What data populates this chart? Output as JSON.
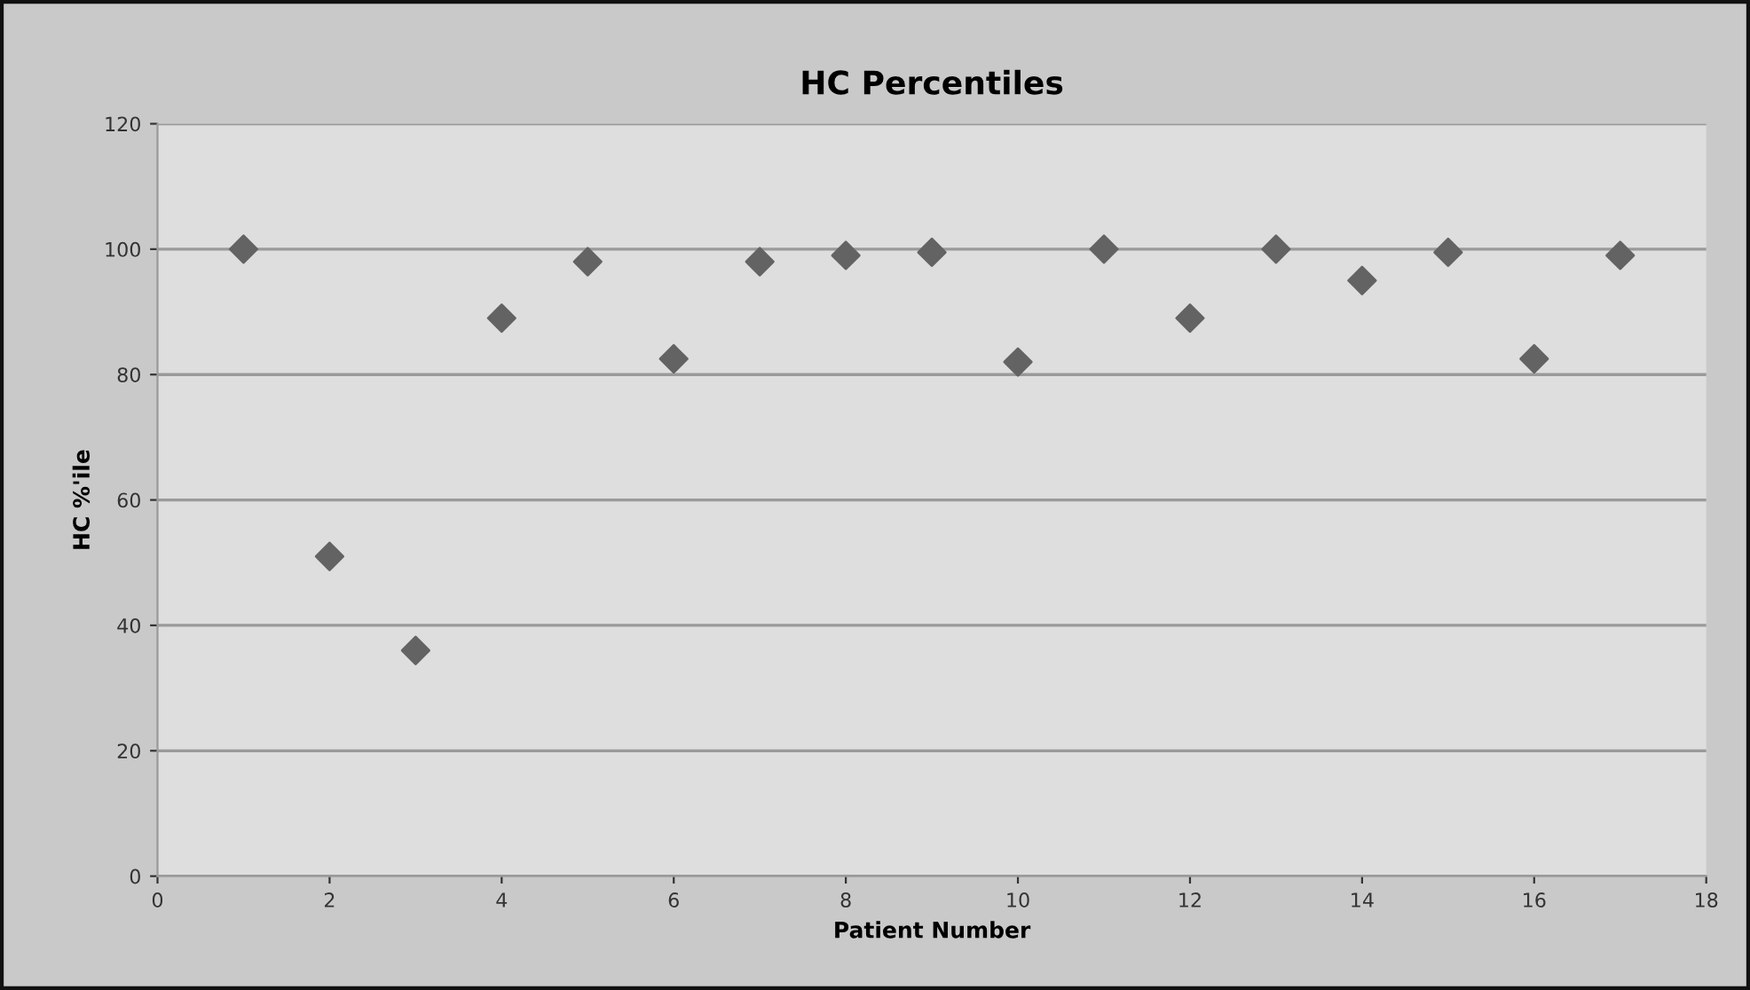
{
  "chart_data": {
    "type": "scatter",
    "title": "HC Percentiles",
    "xlabel": "Patient Number",
    "ylabel": "HC %'ile",
    "x": [
      1,
      2,
      3,
      4,
      5,
      6,
      7,
      8,
      9,
      10,
      11,
      12,
      13,
      14,
      15,
      16,
      17
    ],
    "series": [
      {
        "color": "#636363",
        "values": [
          100,
          51,
          36,
          89,
          98,
          82.5,
          98,
          99,
          99.5,
          82,
          100,
          89,
          100,
          95,
          99.5,
          82.5,
          99
        ]
      }
    ],
    "xlim": [
      0,
      18
    ],
    "xticks": [
      0,
      2,
      4,
      6,
      8,
      10,
      12,
      14,
      16,
      18
    ],
    "ylim": [
      0,
      120
    ],
    "yticks": [
      0,
      20,
      40,
      60,
      80,
      100,
      120
    ],
    "grid": "y",
    "marker": "diamond",
    "legend": false
  }
}
